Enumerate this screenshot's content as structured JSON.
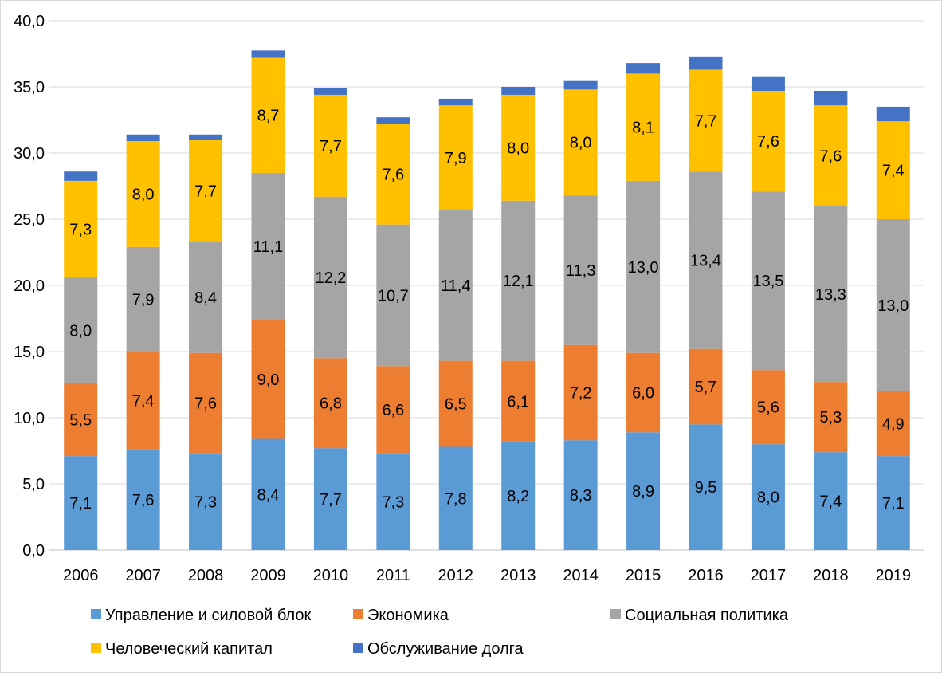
{
  "chart_data": {
    "type": "bar",
    "stacked": true,
    "title": "",
    "xlabel": "",
    "ylabel": "",
    "ylim": [
      0,
      40
    ],
    "yticks": [
      "0,0",
      "5,0",
      "10,0",
      "15,0",
      "20,0",
      "25,0",
      "30,0",
      "35,0",
      "40,0"
    ],
    "grid": true,
    "legend_position": "bottom",
    "categories": [
      "2006",
      "2007",
      "2008",
      "2009",
      "2010",
      "2011",
      "2012",
      "2013",
      "2014",
      "2015",
      "2016",
      "2017",
      "2018",
      "2019"
    ],
    "series": [
      {
        "name": "Управление и силовой блок",
        "color": "#5B9BD5",
        "labeled": true,
        "values": [
          7.1,
          7.6,
          7.3,
          8.4,
          7.7,
          7.3,
          7.8,
          8.2,
          8.3,
          8.9,
          9.5,
          8.0,
          7.4,
          7.1
        ]
      },
      {
        "name": "Экономика",
        "color": "#ED7D31",
        "labeled": true,
        "values": [
          5.5,
          7.4,
          7.6,
          9.0,
          6.8,
          6.6,
          6.5,
          6.1,
          7.2,
          6.0,
          5.7,
          5.6,
          5.3,
          4.9
        ]
      },
      {
        "name": "Социальная политика",
        "color": "#A5A5A5",
        "labeled": true,
        "values": [
          8.0,
          7.9,
          8.4,
          11.1,
          12.2,
          10.7,
          11.4,
          12.1,
          11.3,
          13.0,
          13.4,
          13.5,
          13.3,
          13.0
        ]
      },
      {
        "name": "Человеческий капитал",
        "color": "#FFC000",
        "labeled": true,
        "values": [
          7.3,
          8.0,
          7.7,
          8.7,
          7.7,
          7.6,
          7.9,
          8.0,
          8.0,
          8.1,
          7.7,
          7.6,
          7.6,
          7.4
        ]
      },
      {
        "name": "Обслуживание долга",
        "color": "#4472C4",
        "labeled": false,
        "values": [
          0.7,
          0.5,
          0.4,
          0.55,
          0.5,
          0.5,
          0.5,
          0.6,
          0.7,
          0.8,
          1.0,
          1.1,
          1.1,
          1.1
        ]
      }
    ]
  }
}
